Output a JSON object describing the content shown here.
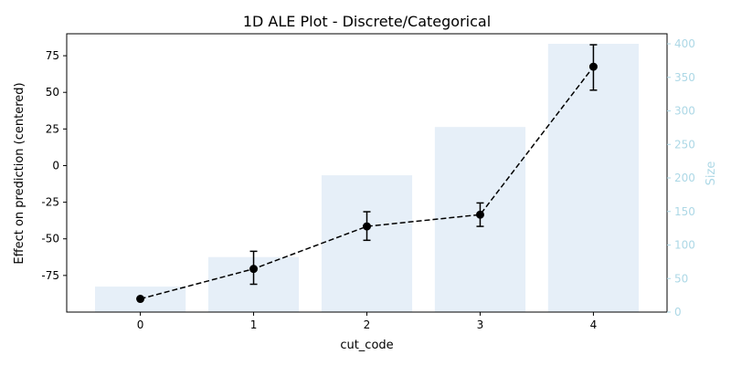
{
  "chart_data": {
    "type": "bar",
    "title": "1D ALE Plot - Discrete/Categorical",
    "xlabel": "cut_code",
    "ylabel": "Effect on prediction (centered)",
    "y2label": "Size",
    "categories": [
      "0",
      "1",
      "2",
      "3",
      "4"
    ],
    "x": [
      0,
      1,
      2,
      3,
      4
    ],
    "ylim": [
      -100,
      90
    ],
    "y2lim": [
      0,
      415
    ],
    "yticks": [
      -75,
      -50,
      -25,
      0,
      25,
      50,
      75
    ],
    "y2ticks": [
      0,
      50,
      100,
      150,
      200,
      250,
      300,
      350,
      400
    ],
    "series": [
      {
        "type": "line",
        "axis": "left",
        "style": "dashed",
        "marker": "circle",
        "color": "#000000",
        "values": [
          -91,
          -70.5,
          -41.5,
          -33.5,
          67.5
        ],
        "error_low": [
          -91,
          -81,
          -51,
          -41.5,
          51.5
        ],
        "error_high": [
          -91,
          -58.5,
          -31.5,
          -25.5,
          82.5
        ]
      },
      {
        "type": "bar",
        "axis": "right",
        "color": "#e6eff8",
        "values": [
          38,
          82,
          204,
          276,
          400
        ]
      }
    ],
    "axis_colors": {
      "left": "#000000",
      "right": "#add8e6"
    },
    "grid": false
  }
}
